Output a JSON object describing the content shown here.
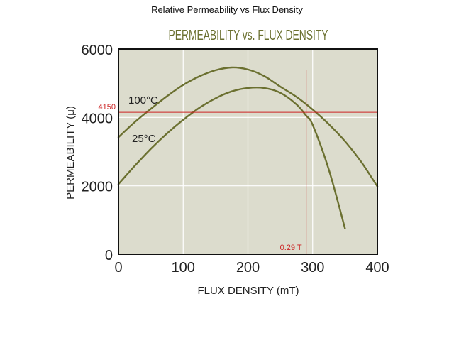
{
  "page_title": "Relative Permeability vs Flux Density",
  "chart_data": {
    "type": "line",
    "title": "PERMEABILITY vs. FLUX DENSITY",
    "xlabel": "FLUX DENSITY (mT)",
    "ylabel": "PERMEABILITY (μ)",
    "xlim": [
      0,
      400
    ],
    "ylim": [
      0,
      6000
    ],
    "xticks": [
      "0",
      "100",
      "200",
      "300",
      "400"
    ],
    "yticks": [
      "0",
      "2000",
      "4000",
      "6000"
    ],
    "grid": true,
    "colors": {
      "plot_bg": "#dcdccd",
      "series": "#6b7030",
      "grid": "#ffffff",
      "annotation": "#cc2222"
    },
    "series": [
      {
        "name": "100°C",
        "x": [
          0,
          25,
          50,
          75,
          100,
          125,
          150,
          175,
          200,
          225,
          250,
          275,
          290,
          300,
          325,
          350
        ],
        "y": [
          2050,
          2580,
          3080,
          3530,
          3930,
          4280,
          4560,
          4760,
          4860,
          4860,
          4720,
          4380,
          4050,
          3780,
          2470,
          750
        ]
      },
      {
        "name": "25°C",
        "x": [
          0,
          25,
          50,
          75,
          100,
          125,
          150,
          175,
          200,
          225,
          250,
          275,
          300,
          325,
          350,
          375,
          400
        ],
        "y": [
          3420,
          3860,
          4250,
          4620,
          4950,
          5200,
          5380,
          5460,
          5400,
          5210,
          4900,
          4600,
          4230,
          3800,
          3300,
          2700,
          1980
        ]
      }
    ],
    "annotations": {
      "hline": {
        "y": 4150,
        "label": "4150"
      },
      "vline": {
        "x": 290,
        "label": "0.29 T"
      }
    }
  }
}
